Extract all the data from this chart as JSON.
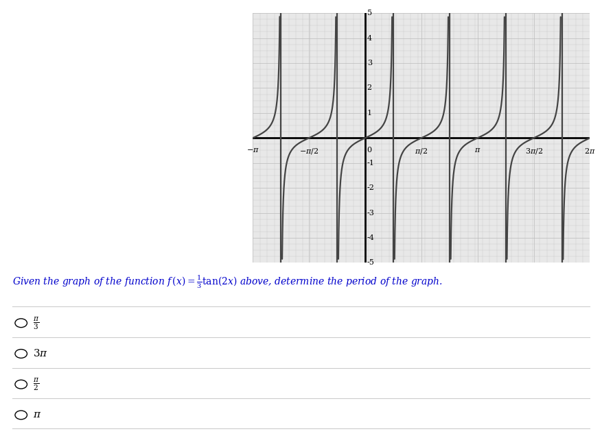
{
  "question_text": "Given the graph of the function $f\\,(x) = \\frac{1}{3}\\tan(2x)$ above, determine the period of the graph.",
  "choices": [
    "$\\frac{\\pi}{3}$",
    "$3\\pi$",
    "$\\frac{\\pi}{2}$",
    "$\\pi$"
  ],
  "xmin": -3.14159265,
  "xmax": 6.2831853,
  "ymin": -5,
  "ymax": 5,
  "pi": 3.14159265358979,
  "xticks_values": [
    -3.14159265,
    -1.5707963,
    0,
    1.5707963,
    3.14159265,
    4.71238898,
    6.2831853
  ],
  "xticks_labels": [
    "-\\pi",
    "-\\pi/2",
    "0",
    "\\pi/2",
    "\\pi",
    "3\\pi/2",
    "2\\pi"
  ],
  "yticks": [
    -5,
    -4,
    -3,
    -2,
    -1,
    1,
    2,
    3,
    4,
    5
  ],
  "grid_color": "#cccccc",
  "grid_color_major": "#bbbbbb",
  "curve_color": "#444444",
  "plot_bg": "#e8e8e8",
  "line_width": 1.6,
  "amplitude": 0.3333333,
  "question_color": "#0000cc",
  "choice_color": "#000000"
}
